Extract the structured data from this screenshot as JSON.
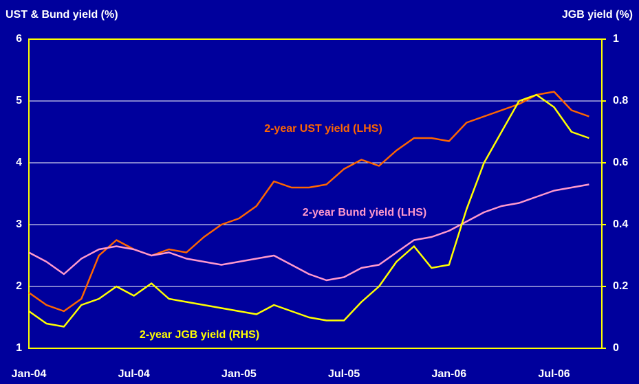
{
  "chart_data": {
    "type": "line",
    "y_label": "UST & Bund yield (%)",
    "y2_label": "JGB yield (%)",
    "categories": [
      "Jan-04",
      null,
      null,
      null,
      null,
      null,
      "Jul-04",
      null,
      null,
      null,
      null,
      null,
      "Jan-05",
      null,
      null,
      null,
      null,
      null,
      "Jul-05",
      null,
      null,
      null,
      null,
      null,
      "Jan-06",
      null,
      null,
      null,
      null,
      null,
      "Jul-06",
      null,
      null
    ],
    "series": [
      {
        "name": "2-year UST yield (LHS)",
        "color": "#ff6600",
        "values": [
          1.9,
          1.7,
          1.6,
          1.8,
          2.5,
          2.75,
          2.6,
          2.5,
          2.6,
          2.55,
          2.8,
          3.0,
          3.1,
          3.3,
          3.7,
          3.6,
          3.6,
          3.65,
          3.9,
          4.05,
          3.95,
          4.2,
          4.4,
          4.4,
          4.35,
          4.65,
          4.75,
          4.85,
          4.95,
          5.1,
          5.15,
          4.85,
          4.75
        ]
      },
      {
        "name": "2-year Bund yield (LHS)",
        "color": "#ff99cc",
        "values": [
          2.55,
          2.4,
          2.2,
          2.45,
          2.6,
          2.65,
          2.6,
          2.5,
          2.55,
          2.45,
          2.4,
          2.35,
          2.4,
          2.45,
          2.5,
          2.35,
          2.2,
          2.1,
          2.15,
          2.3,
          2.35,
          2.55,
          2.75,
          2.8,
          2.9,
          3.05,
          3.2,
          3.3,
          3.35,
          3.45,
          3.55,
          3.6,
          3.65
        ]
      },
      {
        "name": "2-year JGB yield (RHS)",
        "color": "#ffff00",
        "axis": "y2",
        "values": [
          0.12,
          0.08,
          0.07,
          0.14,
          0.16,
          0.2,
          0.17,
          0.21,
          0.16,
          0.15,
          0.14,
          0.13,
          0.12,
          0.11,
          0.14,
          0.12,
          0.1,
          0.09,
          0.09,
          0.15,
          0.2,
          0.28,
          0.33,
          0.26,
          0.27,
          0.45,
          0.6,
          0.7,
          0.8,
          0.82,
          0.78,
          0.7,
          0.68
        ]
      }
    ],
    "ylim": [
      1,
      6
    ],
    "yticks": [
      1,
      2,
      3,
      4,
      5,
      6
    ],
    "y2lim": [
      0,
      1
    ],
    "y2ticks": [
      0,
      0.2,
      0.4,
      0.6,
      0.8,
      1
    ],
    "grid": true
  }
}
